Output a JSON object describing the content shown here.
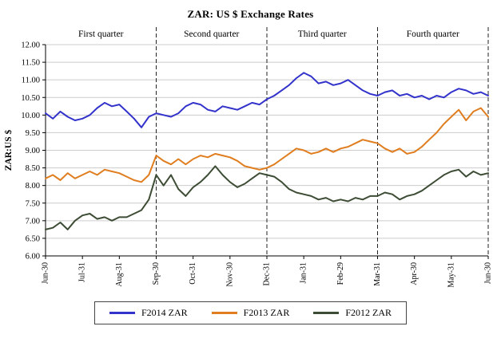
{
  "title": "ZAR: US $ Exchange Rates",
  "chart_data": {
    "type": "line",
    "title": "ZAR: US $ Exchange Rates",
    "ylabel": "ZAR:US $",
    "ylim": [
      6.0,
      12.0
    ],
    "ytick_step": 0.5,
    "grid": "horizontal",
    "legend_position": "bottom",
    "x_labels": [
      "Jun-30",
      "Jul-31",
      "Aug-31",
      "Sep-30",
      "Oct-31",
      "Nov-30",
      "Dec-31",
      "Jan-31",
      "Feb-29",
      "Mar-31",
      "Apr-30",
      "May-31",
      "Jun-30"
    ],
    "quarter_labels": [
      "First quarter",
      "Second quarter",
      "Third quarter",
      "Fourth quarter"
    ],
    "quarter_divider_months": [
      3,
      6,
      9,
      12
    ],
    "series": [
      {
        "name": "F2014 ZAR",
        "color": "#3333cc",
        "values": [
          10.05,
          9.9,
          10.1,
          9.95,
          9.85,
          9.9,
          10.0,
          10.2,
          10.35,
          10.25,
          10.3,
          10.1,
          9.9,
          9.65,
          9.95,
          10.05,
          10.0,
          9.95,
          10.05,
          10.25,
          10.35,
          10.3,
          10.15,
          10.1,
          10.25,
          10.2,
          10.15,
          10.25,
          10.35,
          10.3,
          10.45,
          10.55,
          10.7,
          10.85,
          11.05,
          11.2,
          11.1,
          10.9,
          10.95,
          10.85,
          10.9,
          11.0,
          10.85,
          10.7,
          10.6,
          10.55,
          10.65,
          10.7,
          10.55,
          10.6,
          10.5,
          10.55,
          10.45,
          10.55,
          10.5,
          10.65,
          10.75,
          10.7,
          10.6,
          10.65,
          10.55
        ]
      },
      {
        "name": "F2013 ZAR",
        "color": "#e07d1f",
        "values": [
          8.2,
          8.3,
          8.15,
          8.35,
          8.2,
          8.3,
          8.4,
          8.3,
          8.45,
          8.4,
          8.35,
          8.25,
          8.15,
          8.1,
          8.3,
          8.85,
          8.7,
          8.6,
          8.75,
          8.6,
          8.75,
          8.85,
          8.8,
          8.9,
          8.85,
          8.8,
          8.7,
          8.55,
          8.5,
          8.45,
          8.5,
          8.6,
          8.75,
          8.9,
          9.05,
          9.0,
          8.9,
          8.95,
          9.05,
          8.95,
          9.05,
          9.1,
          9.2,
          9.3,
          9.25,
          9.2,
          9.05,
          8.95,
          9.05,
          8.9,
          8.95,
          9.1,
          9.3,
          9.5,
          9.75,
          9.95,
          10.15,
          9.85,
          10.1,
          10.2,
          9.95
        ]
      },
      {
        "name": "F2012 ZAR",
        "color": "#3d4c34",
        "values": [
          6.75,
          6.8,
          6.95,
          6.75,
          7.0,
          7.15,
          7.2,
          7.05,
          7.1,
          7.0,
          7.1,
          7.1,
          7.2,
          7.3,
          7.6,
          8.3,
          8.0,
          8.3,
          7.9,
          7.7,
          7.95,
          8.1,
          8.3,
          8.55,
          8.3,
          8.1,
          7.95,
          8.05,
          8.2,
          8.35,
          8.3,
          8.25,
          8.1,
          7.9,
          7.8,
          7.75,
          7.7,
          7.6,
          7.65,
          7.55,
          7.6,
          7.55,
          7.65,
          7.6,
          7.7,
          7.7,
          7.8,
          7.75,
          7.6,
          7.7,
          7.75,
          7.85,
          8.0,
          8.15,
          8.3,
          8.4,
          8.45,
          8.25,
          8.4,
          8.3,
          8.35
        ]
      }
    ]
  }
}
